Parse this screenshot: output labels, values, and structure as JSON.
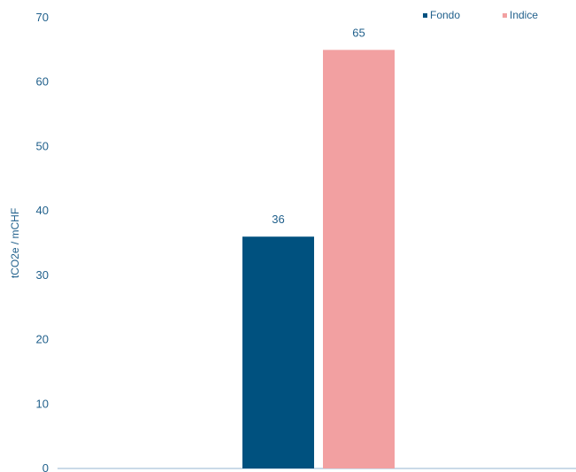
{
  "chart_data": {
    "type": "bar",
    "title": "",
    "xlabel": "",
    "ylabel": "tCO2e / mCHF",
    "ylim": [
      0,
      70
    ],
    "yticks": [
      0,
      10,
      20,
      30,
      40,
      50,
      60,
      70
    ],
    "grid": false,
    "legend_position": "top-right",
    "categories": [
      ""
    ],
    "series": [
      {
        "name": "Fondo",
        "values": [
          36
        ],
        "value_labels": [
          "36"
        ],
        "color": "#00517f"
      },
      {
        "name": "Indice",
        "values": [
          65
        ],
        "value_labels": [
          "65"
        ],
        "color": "#f2a0a1"
      }
    ],
    "colors": {
      "text": "#1f5f8b",
      "axis": "#b9cde0"
    }
  }
}
